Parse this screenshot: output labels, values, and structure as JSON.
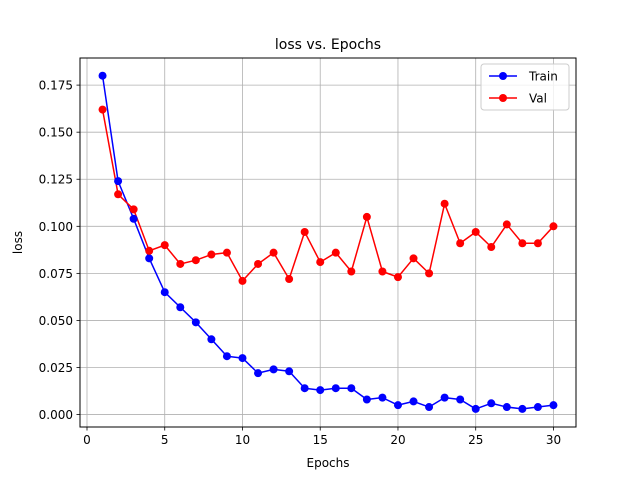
{
  "chart_data": {
    "type": "line",
    "title": "loss vs. Epochs",
    "xlabel": "Epochs",
    "ylabel": "loss",
    "xlim": [
      -0.45,
      31.45
    ],
    "ylim": [
      -0.0066,
      0.1894
    ],
    "xticks": [
      0,
      5,
      10,
      15,
      20,
      25,
      30
    ],
    "xtick_labels": [
      "0",
      "5",
      "10",
      "15",
      "20",
      "25",
      "30"
    ],
    "yticks": [
      0.0,
      0.025,
      0.05,
      0.075,
      0.1,
      0.125,
      0.15,
      0.175
    ],
    "ytick_labels": [
      "0.000",
      "0.025",
      "0.050",
      "0.075",
      "0.100",
      "0.125",
      "0.150",
      "0.175"
    ],
    "grid": true,
    "legend_position": "top-right",
    "x": [
      1,
      2,
      3,
      4,
      5,
      6,
      7,
      8,
      9,
      10,
      11,
      12,
      13,
      14,
      15,
      16,
      17,
      18,
      19,
      20,
      21,
      22,
      23,
      24,
      25,
      26,
      27,
      28,
      29,
      30
    ],
    "series": [
      {
        "name": "Train",
        "color": "#0000ff",
        "values": [
          0.18,
          0.124,
          0.104,
          0.083,
          0.065,
          0.057,
          0.049,
          0.04,
          0.031,
          0.03,
          0.022,
          0.024,
          0.023,
          0.014,
          0.013,
          0.014,
          0.014,
          0.008,
          0.009,
          0.005,
          0.007,
          0.004,
          0.009,
          0.008,
          0.003,
          0.006,
          0.004,
          0.003,
          0.004,
          0.005
        ]
      },
      {
        "name": "Val",
        "color": "#ff0000",
        "values": [
          0.162,
          0.117,
          0.109,
          0.087,
          0.09,
          0.08,
          0.082,
          0.085,
          0.086,
          0.071,
          0.08,
          0.086,
          0.072,
          0.097,
          0.081,
          0.086,
          0.076,
          0.105,
          0.076,
          0.073,
          0.083,
          0.075,
          0.112,
          0.091,
          0.097,
          0.089,
          0.101,
          0.091,
          0.091,
          0.1
        ]
      }
    ]
  }
}
